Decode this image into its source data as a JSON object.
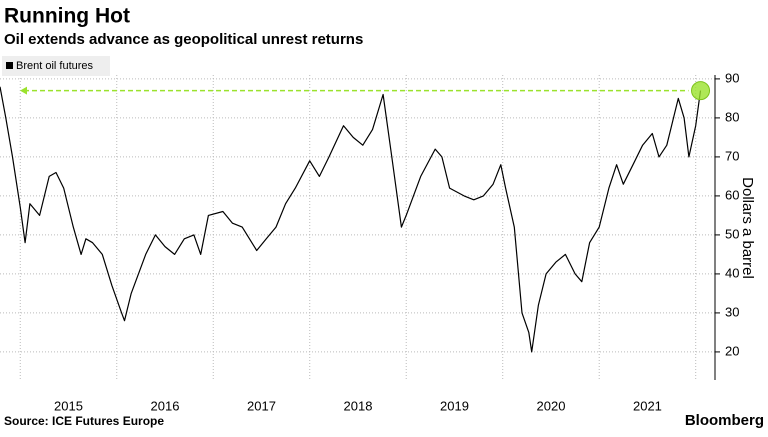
{
  "chart_data": {
    "type": "line",
    "title": "Running Hot",
    "subtitle": "Oil extends advance as geopolitical unrest returns",
    "source": "Source: ICE Futures Europe",
    "brand": "Bloomberg",
    "y_axis_label": "Dollars a barrel",
    "x": [
      2014.79,
      2014.85,
      2014.92,
      2015.0,
      2015.05,
      2015.1,
      2015.2,
      2015.3,
      2015.37,
      2015.45,
      2015.55,
      2015.63,
      2015.68,
      2015.75,
      2015.85,
      2015.95,
      2016.05,
      2016.08,
      2016.15,
      2016.3,
      2016.4,
      2016.5,
      2016.6,
      2016.7,
      2016.8,
      2016.87,
      2016.95,
      2017.1,
      2017.2,
      2017.3,
      2017.45,
      2017.55,
      2017.65,
      2017.75,
      2017.85,
      2018.0,
      2018.1,
      2018.2,
      2018.35,
      2018.45,
      2018.55,
      2018.65,
      2018.76,
      2018.85,
      2018.95,
      2019.0,
      2019.15,
      2019.3,
      2019.37,
      2019.45,
      2019.6,
      2019.7,
      2019.8,
      2019.9,
      2019.98,
      2020.03,
      2020.12,
      2020.2,
      2020.27,
      2020.3,
      2020.37,
      2020.45,
      2020.55,
      2020.65,
      2020.75,
      2020.82,
      2020.9,
      2021.0,
      2021.1,
      2021.18,
      2021.25,
      2021.35,
      2021.45,
      2021.55,
      2021.62,
      2021.7,
      2021.77,
      2021.82,
      2021.88,
      2021.93,
      2022.0,
      2022.05
    ],
    "series": [
      {
        "name": "Brent oil futures",
        "color": "#000000",
        "values": [
          88,
          80,
          70,
          57,
          48,
          58,
          55,
          65,
          66,
          62,
          52,
          45,
          49,
          48,
          45,
          37,
          30,
          28,
          35,
          45,
          50,
          47,
          45,
          49,
          50,
          45,
          55,
          56,
          53,
          52,
          46,
          49,
          52,
          58,
          62,
          69,
          65,
          70,
          78,
          75,
          73,
          77,
          86,
          70,
          52,
          55,
          65,
          72,
          70,
          62,
          60,
          59,
          60,
          63,
          68,
          62,
          52,
          30,
          25,
          20,
          32,
          40,
          43,
          45,
          40,
          38,
          48,
          52,
          62,
          68,
          63,
          68,
          73,
          76,
          70,
          73,
          80,
          85,
          80,
          70,
          78,
          87
        ]
      }
    ],
    "highlight_color": "#9be22d",
    "xlim": [
      2014.79,
      2022.2
    ],
    "ylim": [
      12.8,
      91
    ],
    "yticks": [
      20,
      30,
      40,
      50,
      60,
      70,
      80,
      90
    ],
    "xticks": [
      {
        "value": 2015.5,
        "label": "2015"
      },
      {
        "value": 2016.5,
        "label": "2016"
      },
      {
        "value": 2017.5,
        "label": "2017"
      },
      {
        "value": 2018.5,
        "label": "2018"
      },
      {
        "value": 2019.5,
        "label": "2019"
      },
      {
        "value": 2020.5,
        "label": "2020"
      },
      {
        "value": 2021.5,
        "label": "2021"
      }
    ],
    "xgrid": [
      2015,
      2016,
      2017,
      2018,
      2019,
      2020,
      2021,
      2022
    ],
    "grid": true
  }
}
